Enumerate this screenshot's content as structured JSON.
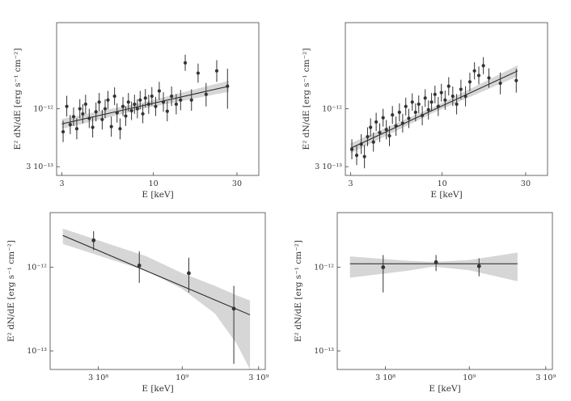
{
  "chart_data": [
    {
      "type": "scatter",
      "xlabel": "E [keV]",
      "ylabel": "E² dN/dE [erg s⁻¹ cm⁻²]",
      "xscale": "log",
      "yscale": "log",
      "xlim": [
        2.8,
        40
      ],
      "ylim": [
        2.5e-13,
        6e-12
      ],
      "xticks": [
        3,
        10,
        30
      ],
      "xtick_labels": [
        "3",
        "10",
        "30"
      ],
      "yticks": [
        3e-13,
        1e-12
      ],
      "ytick_labels": [
        "3 10⁻¹³",
        "10⁻¹²"
      ],
      "fit": {
        "x": [
          3,
          27
        ],
        "y": [
          7.3e-13,
          1.6e-12
        ],
        "band_halfwidth_dex": [
          0.045,
          0.028,
          0.05
        ]
      },
      "points": [
        {
          "x": 3.05,
          "y": 6.2e-13,
          "yerr": [
            1.2e-13,
            1.6e-13
          ]
        },
        {
          "x": 3.2,
          "y": 1.05e-12,
          "yerr": [
            2e-13,
            2.6e-13
          ]
        },
        {
          "x": 3.35,
          "y": 7.2e-13,
          "yerr": [
            1.3e-13,
            1.6e-13
          ]
        },
        {
          "x": 3.5,
          "y": 8.5e-13,
          "yerr": [
            1.5e-13,
            1.8e-13
          ]
        },
        {
          "x": 3.65,
          "y": 6.6e-13,
          "yerr": [
            1.3e-13,
            1.6e-13
          ]
        },
        {
          "x": 3.8,
          "y": 1e-12,
          "yerr": [
            1.8e-13,
            2.2e-13
          ]
        },
        {
          "x": 3.95,
          "y": 9e-13,
          "yerr": [
            1.6e-13,
            2e-13
          ]
        },
        {
          "x": 4.1,
          "y": 1.1e-12,
          "yerr": [
            2e-13,
            2.4e-13
          ]
        },
        {
          "x": 4.3,
          "y": 8.2e-13,
          "yerr": [
            1.5e-13,
            1.8e-13
          ]
        },
        {
          "x": 4.5,
          "y": 6.8e-13,
          "yerr": [
            1.3e-13,
            1.6e-13
          ]
        },
        {
          "x": 4.7,
          "y": 9.4e-13,
          "yerr": [
            1.7e-13,
            2e-13
          ]
        },
        {
          "x": 4.9,
          "y": 1.15e-12,
          "yerr": [
            2e-13,
            2.4e-13
          ]
        },
        {
          "x": 5.1,
          "y": 8e-13,
          "yerr": [
            1.5e-13,
            1.8e-13
          ]
        },
        {
          "x": 5.3,
          "y": 1e-12,
          "yerr": [
            1.8e-13,
            2.2e-13
          ]
        },
        {
          "x": 5.5,
          "y": 1.2e-12,
          "yerr": [
            2.1e-13,
            2.5e-13
          ]
        },
        {
          "x": 5.75,
          "y": 6.9e-13,
          "yerr": [
            1.3e-13,
            1.6e-13
          ]
        },
        {
          "x": 6.0,
          "y": 1.3e-12,
          "yerr": [
            2.2e-13,
            2.6e-13
          ]
        },
        {
          "x": 6.2,
          "y": 9.2e-13,
          "yerr": [
            1.7e-13,
            2e-13
          ]
        },
        {
          "x": 6.45,
          "y": 6.6e-13,
          "yerr": [
            1.3e-13,
            1.6e-13
          ]
        },
        {
          "x": 6.7,
          "y": 1.05e-12,
          "yerr": [
            1.9e-13,
            2.3e-13
          ]
        },
        {
          "x": 6.95,
          "y": 8.6e-13,
          "yerr": [
            1.6e-13,
            1.9e-13
          ]
        },
        {
          "x": 7.2,
          "y": 1.15e-12,
          "yerr": [
            2e-13,
            2.4e-13
          ]
        },
        {
          "x": 7.5,
          "y": 9.6e-13,
          "yerr": [
            1.7e-13,
            2e-13
          ]
        },
        {
          "x": 7.8,
          "y": 1.1e-12,
          "yerr": [
            2e-13,
            2.4e-13
          ]
        },
        {
          "x": 8.1,
          "y": 1e-12,
          "yerr": [
            1.8e-13,
            2.2e-13
          ]
        },
        {
          "x": 8.4,
          "y": 1.2e-12,
          "yerr": [
            2.1e-13,
            2.5e-13
          ]
        },
        {
          "x": 8.7,
          "y": 9e-13,
          "yerr": [
            1.6e-13,
            2e-13
          ]
        },
        {
          "x": 9.0,
          "y": 1.25e-12,
          "yerr": [
            2.2e-13,
            2.6e-13
          ]
        },
        {
          "x": 9.4,
          "y": 1.1e-12,
          "yerr": [
            2e-13,
            2.4e-13
          ]
        },
        {
          "x": 9.8,
          "y": 1.3e-12,
          "yerr": [
            2.3e-13,
            2.7e-13
          ]
        },
        {
          "x": 10.3,
          "y": 1.05e-12,
          "yerr": [
            1.9e-13,
            2.3e-13
          ]
        },
        {
          "x": 10.8,
          "y": 1.45e-12,
          "yerr": [
            2.5e-13,
            3e-13
          ]
        },
        {
          "x": 11.4,
          "y": 1.15e-12,
          "yerr": [
            2.1e-13,
            2.6e-13
          ]
        },
        {
          "x": 12.0,
          "y": 9.5e-13,
          "yerr": [
            1.8e-13,
            2.2e-13
          ]
        },
        {
          "x": 12.7,
          "y": 1.3e-12,
          "yerr": [
            2.4e-13,
            2.9e-13
          ]
        },
        {
          "x": 13.5,
          "y": 1.1e-12,
          "yerr": [
            2.1e-13,
            2.6e-13
          ]
        },
        {
          "x": 14.3,
          "y": 1.2e-12,
          "yerr": [
            2.3e-13,
            2.8e-13
          ]
        },
        {
          "x": 15.2,
          "y": 2.6e-12,
          "yerr": [
            4e-13,
            4.8e-13
          ]
        },
        {
          "x": 16.5,
          "y": 1.2e-12,
          "yerr": [
            2.4e-13,
            3e-13
          ]
        },
        {
          "x": 18.0,
          "y": 2.1e-12,
          "yerr": [
            3.8e-13,
            4.6e-13
          ]
        },
        {
          "x": 20.0,
          "y": 1.35e-12,
          "yerr": [
            3e-13,
            3.6e-13
          ]
        },
        {
          "x": 23.0,
          "y": 2.2e-12,
          "yerr": [
            4.5e-13,
            5.5e-13
          ]
        },
        {
          "x": 26.5,
          "y": 1.6e-12,
          "yerr": [
            6e-13,
            7e-13
          ]
        }
      ]
    },
    {
      "type": "scatter",
      "xlabel": "E [keV]",
      "ylabel": "E² dN/dE [erg s⁻¹ cm⁻²]",
      "xscale": "log",
      "yscale": "log",
      "xlim": [
        2.8,
        40
      ],
      "ylim": [
        2.5e-13,
        6e-12
      ],
      "xticks": [
        3,
        10,
        30
      ],
      "xtick_labels": [
        "3",
        "10",
        "30"
      ],
      "yticks": [
        3e-13,
        1e-12
      ],
      "ytick_labels": [
        "3 10⁻¹³",
        "10⁻¹²"
      ],
      "fit": {
        "x": [
          3,
          27
        ],
        "y": [
          4.4e-13,
          2.2e-12
        ],
        "band_halfwidth_dex": [
          0.045,
          0.025,
          0.05
        ]
      },
      "points": [
        {
          "x": 3.05,
          "y": 4.3e-13,
          "yerr": [
            8e-14,
            1e-13
          ]
        },
        {
          "x": 3.25,
          "y": 3.8e-13,
          "yerr": [
            7e-14,
            9e-14
          ]
        },
        {
          "x": 3.45,
          "y": 4.8e-13,
          "yerr": [
            9e-14,
            1.1e-13
          ]
        },
        {
          "x": 3.6,
          "y": 3.7e-13,
          "yerr": [
            8e-14,
            1e-13
          ]
        },
        {
          "x": 3.75,
          "y": 5.6e-13,
          "yerr": [
            1e-13,
            1.2e-13
          ]
        },
        {
          "x": 3.9,
          "y": 6.8e-13,
          "yerr": [
            1.2e-13,
            1.4e-13
          ]
        },
        {
          "x": 4.05,
          "y": 5e-13,
          "yerr": [
            9e-14,
            1.1e-13
          ]
        },
        {
          "x": 4.2,
          "y": 7.6e-13,
          "yerr": [
            1.3e-13,
            1.6e-13
          ]
        },
        {
          "x": 4.4,
          "y": 6.1e-13,
          "yerr": [
            1.1e-13,
            1.3e-13
          ]
        },
        {
          "x": 4.6,
          "y": 8.3e-13,
          "yerr": [
            1.4e-13,
            1.7e-13
          ]
        },
        {
          "x": 4.8,
          "y": 6.5e-13,
          "yerr": [
            1.2e-13,
            1.4e-13
          ]
        },
        {
          "x": 5.0,
          "y": 5.7e-13,
          "yerr": [
            1.1e-13,
            1.3e-13
          ]
        },
        {
          "x": 5.2,
          "y": 8.8e-13,
          "yerr": [
            1.5e-13,
            1.8e-13
          ]
        },
        {
          "x": 5.45,
          "y": 7e-13,
          "yerr": [
            1.3e-13,
            1.5e-13
          ]
        },
        {
          "x": 5.7,
          "y": 9.3e-13,
          "yerr": [
            1.6e-13,
            1.9e-13
          ]
        },
        {
          "x": 5.95,
          "y": 7.4e-13,
          "yerr": [
            1.3e-13,
            1.6e-13
          ]
        },
        {
          "x": 6.2,
          "y": 1.05e-12,
          "yerr": [
            1.8e-13,
            2.1e-13
          ]
        },
        {
          "x": 6.45,
          "y": 8.2e-13,
          "yerr": [
            1.5e-13,
            1.8e-13
          ]
        },
        {
          "x": 6.75,
          "y": 1.15e-12,
          "yerr": [
            1.9e-13,
            2.3e-13
          ]
        },
        {
          "x": 7.05,
          "y": 9.3e-13,
          "yerr": [
            1.6e-13,
            1.9e-13
          ]
        },
        {
          "x": 7.35,
          "y": 1.1e-12,
          "yerr": [
            1.9e-13,
            2.2e-13
          ]
        },
        {
          "x": 7.7,
          "y": 8.7e-13,
          "yerr": [
            1.6e-13,
            1.9e-13
          ]
        },
        {
          "x": 8.0,
          "y": 1.25e-12,
          "yerr": [
            2.1e-13,
            2.5e-13
          ]
        },
        {
          "x": 8.35,
          "y": 9.8e-13,
          "yerr": [
            1.8e-13,
            2.1e-13
          ]
        },
        {
          "x": 8.7,
          "y": 1.15e-12,
          "yerr": [
            2e-13,
            2.4e-13
          ]
        },
        {
          "x": 9.1,
          "y": 1.35e-12,
          "yerr": [
            2.3e-13,
            2.7e-13
          ]
        },
        {
          "x": 9.5,
          "y": 1.05e-12,
          "yerr": [
            1.9e-13,
            2.3e-13
          ]
        },
        {
          "x": 9.9,
          "y": 1.4e-12,
          "yerr": [
            2.4e-13,
            2.8e-13
          ]
        },
        {
          "x": 10.4,
          "y": 1.2e-12,
          "yerr": [
            2.2e-13,
            2.6e-13
          ]
        },
        {
          "x": 10.9,
          "y": 1.6e-12,
          "yerr": [
            2.8e-13,
            3.3e-13
          ]
        },
        {
          "x": 11.5,
          "y": 1.3e-12,
          "yerr": [
            2.4e-13,
            2.9e-13
          ]
        },
        {
          "x": 12.1,
          "y": 1.1e-12,
          "yerr": [
            2.1e-13,
            2.6e-13
          ]
        },
        {
          "x": 12.8,
          "y": 1.5e-12,
          "yerr": [
            2.8e-13,
            3.3e-13
          ]
        },
        {
          "x": 13.6,
          "y": 1.3e-12,
          "yerr": [
            2.5e-13,
            3e-13
          ]
        },
        {
          "x": 14.4,
          "y": 1.75e-12,
          "yerr": [
            3.1e-13,
            3.7e-13
          ]
        },
        {
          "x": 15.3,
          "y": 2.2e-12,
          "yerr": [
            3.6e-13,
            4.3e-13
          ]
        },
        {
          "x": 16.2,
          "y": 2e-12,
          "yerr": [
            3.4e-13,
            4.1e-13
          ]
        },
        {
          "x": 17.2,
          "y": 2.45e-12,
          "yerr": [
            4e-13,
            4.8e-13
          ]
        },
        {
          "x": 18.5,
          "y": 1.9e-12,
          "yerr": [
            3.5e-13,
            4.2e-13
          ]
        },
        {
          "x": 21.5,
          "y": 1.7e-12,
          "yerr": [
            3.5e-13,
            4.3e-13
          ]
        },
        {
          "x": 26.5,
          "y": 1.8e-12,
          "yerr": [
            4e-13,
            5e-13
          ]
        }
      ]
    },
    {
      "type": "scatter",
      "xlabel": "E [keV]",
      "ylabel": "E² dN/dE [erg s⁻¹ cm⁻²]",
      "xscale": "log",
      "yscale": "log",
      "xlim": [
        150000000.0,
        3300000000.0
      ],
      "ylim": [
        6e-14,
        4.5e-12
      ],
      "xticks": [
        300000000.0,
        1000000000.0,
        3000000000.0
      ],
      "xtick_labels": [
        "3 10⁸",
        "10⁹",
        "3 10⁹"
      ],
      "yticks": [
        1e-13,
        1e-12
      ],
      "ytick_labels": [
        "10⁻¹³",
        "10⁻¹²"
      ],
      "fit": {
        "x": [
          180000000.0,
          2650000000.0
        ],
        "y": [
          2.4e-12,
          2.7e-13
        ]
      },
      "band": {
        "x": [
          180000000.0,
          600000000.0,
          1000000000.0,
          1600000000.0,
          2200000000.0,
          2650000000.0
        ],
        "upper": [
          2.9e-12,
          1.35e-12,
          8.5e-13,
          6e-13,
          4.6e-13,
          4e-13
        ],
        "lower": [
          1.9e-12,
          9e-13,
          5.5e-13,
          2.8e-13,
          1.2e-13,
          6e-14
        ]
      },
      "points": [
        {
          "x": 280000000.0,
          "y": 2.1e-12,
          "yerr": [
            5e-13,
            6e-13
          ]
        },
        {
          "x": 540000000.0,
          "y": 1.05e-12,
          "yerr": [
            4e-13,
            5e-13
          ]
        },
        {
          "x": 1100000000.0,
          "y": 8.5e-13,
          "yerr": [
            3.5e-13,
            4.5e-13
          ]
        },
        {
          "x": 2100000000.0,
          "y": 3.2e-13,
          "yerr": [
            2.5e-13,
            2.8e-13
          ]
        }
      ]
    },
    {
      "type": "scatter",
      "xlabel": "E [keV]",
      "ylabel": "E² dN/dE [erg s⁻¹ cm⁻²]",
      "xscale": "log",
      "yscale": "log",
      "xlim": [
        150000000.0,
        3300000000.0
      ],
      "ylim": [
        6e-14,
        4.5e-12
      ],
      "xticks": [
        300000000.0,
        1000000000.0,
        3000000000.0
      ],
      "xtick_labels": [
        "3 10⁸",
        "10⁹",
        "3 10⁹"
      ],
      "yticks": [
        1e-13,
        1e-12
      ],
      "ytick_labels": [
        "10⁻¹³",
        "10⁻¹²"
      ],
      "fit": {
        "x": [
          180000000.0,
          2000000000.0
        ],
        "y": [
          1.1e-12,
          1.1e-12
        ]
      },
      "band": {
        "x": [
          180000000.0,
          400000000.0,
          600000000.0,
          1000000000.0,
          2000000000.0
        ],
        "upper": [
          1.35e-12,
          1.2e-12,
          1.16e-12,
          1.22e-12,
          1.5e-12
        ],
        "lower": [
          7.5e-13,
          9e-13,
          1.02e-12,
          9.2e-13,
          6.8e-13
        ]
      },
      "points": [
        {
          "x": 290000000.0,
          "y": 1e-12,
          "yerr": [
            5e-13,
            4e-13
          ]
        },
        {
          "x": 620000000.0,
          "y": 1.15e-12,
          "yerr": [
            2.5e-13,
            2.5e-13
          ]
        },
        {
          "x": 1150000000.0,
          "y": 1.03e-12,
          "yerr": [
            2.5e-13,
            2.5e-13
          ]
        }
      ]
    }
  ]
}
